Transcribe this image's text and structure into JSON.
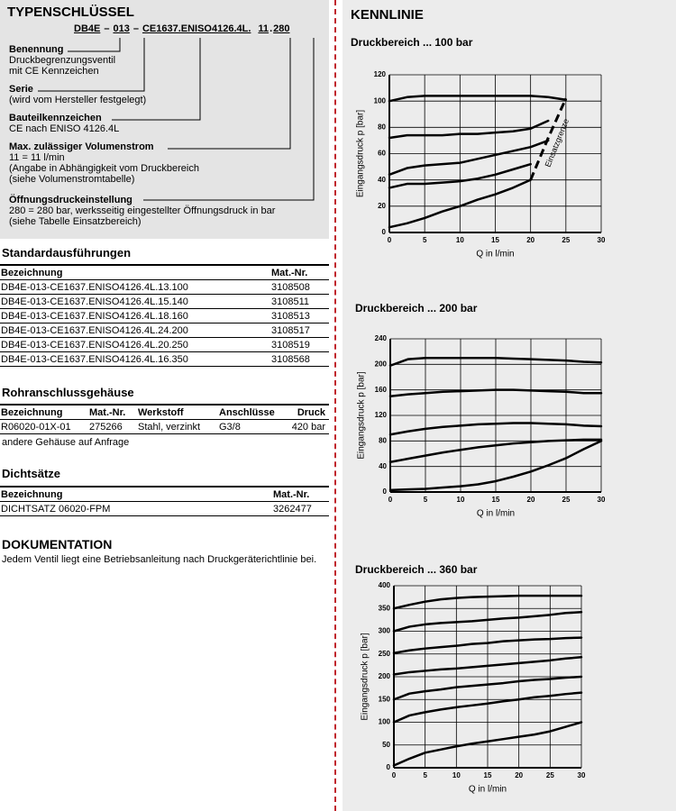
{
  "typenschluessel": {
    "title": "TYPENSCHLÜSSEL",
    "code": [
      "DB4E",
      "–",
      "013",
      "–",
      "CE1637.ENISO4126.4L.",
      "11",
      ".",
      "280"
    ],
    "items": [
      {
        "label": "Benennung",
        "lines": [
          "Druckbegrenzungsventil",
          "mit CE Kennzeichen"
        ]
      },
      {
        "label": "Serie",
        "lines": [
          "(wird vom Hersteller festgelegt)"
        ]
      },
      {
        "label": "Bauteilkennzeichen",
        "lines": [
          "CE nach ENISO 4126.4L"
        ]
      },
      {
        "label": "Max. zulässiger Volumenstrom",
        "lines": [
          "11 = 11 l/min",
          "(Angabe in Abhängigkeit vom Druckbereich",
          "(siehe Volumenstromtabelle)"
        ]
      },
      {
        "label": "Öffnungsdruckeinstellung",
        "lines": [
          "280 = 280 bar, werksseitig eingestellter Öffnungsdruck in bar",
          "(siehe Tabelle Einsatzbereich)"
        ]
      }
    ]
  },
  "standard": {
    "title": "Standardausführungen",
    "columns": [
      "Bezeichnung",
      "Mat.-Nr."
    ],
    "rows": [
      [
        "DB4E-013-CE1637.ENISO4126.4L.13.100",
        "3108508"
      ],
      [
        "DB4E-013-CE1637.ENISO4126.4L.15.140",
        "3108511"
      ],
      [
        "DB4E-013-CE1637.ENISO4126.4L.18.160",
        "3108513"
      ],
      [
        "DB4E-013-CE1637.ENISO4126.4L.24.200",
        "3108517"
      ],
      [
        "DB4E-013-CE1637.ENISO4126.4L.20.250",
        "3108519"
      ],
      [
        "DB4E-013-CE1637.ENISO4126.4L.16.350",
        "3108568"
      ]
    ]
  },
  "gehaeuse": {
    "title": "Rohranschlussgehäuse",
    "columns": [
      "Bezeichnung",
      "Mat.-Nr.",
      "Werkstoff",
      "Anschlüsse",
      "Druck"
    ],
    "rows": [
      [
        "R06020-01X-01",
        "275266",
        "Stahl, verzinkt",
        "G3/8",
        "420 bar"
      ]
    ],
    "note": "andere Gehäuse auf Anfrage"
  },
  "dichtsaetze": {
    "title": "Dichtsätze",
    "columns": [
      "Bezeichnung",
      "Mat.-Nr."
    ],
    "rows": [
      [
        "DICHTSATZ 06020-FPM",
        "3262477"
      ]
    ]
  },
  "dokumentation": {
    "title": "DOKUMENTATION",
    "text": "Jedem Ventil liegt eine Betriebsanleitung nach Druckgeräterichtlinie bei."
  },
  "kennlinie": {
    "title": "KENNLINIE"
  },
  "chart_data": [
    {
      "type": "line",
      "title": "Druckbereich ... 100 bar",
      "x_label": "Q in l/min",
      "y_label": "Eingangsdruck p [bar]",
      "annotation": "Einsatzgrenze",
      "color": "#000000",
      "grid": true,
      "xlim": [
        0,
        30
      ],
      "ylim": [
        0,
        120
      ],
      "xticks": [
        0,
        5,
        10,
        15,
        20,
        25,
        30
      ],
      "yticks": [
        0,
        20,
        40,
        60,
        80,
        100,
        120
      ],
      "x": [
        0,
        2.5,
        5,
        7.5,
        10,
        12.5,
        15,
        17.5,
        20,
        22.5,
        25,
        27.5,
        30
      ],
      "series": [
        {
          "values": [
            100,
            103,
            104,
            104,
            104,
            104,
            104,
            104,
            104,
            103,
            101,
            null,
            null
          ]
        },
        {
          "values": [
            72,
            74,
            74,
            74,
            75,
            75,
            76,
            77,
            79,
            85,
            null,
            null,
            null
          ]
        },
        {
          "values": [
            44,
            49,
            51,
            52,
            53,
            56,
            59,
            62,
            65,
            70,
            null,
            null,
            null
          ]
        },
        {
          "values": [
            34,
            37,
            37,
            38,
            39,
            41,
            44,
            48,
            52,
            null,
            null,
            null,
            null
          ]
        },
        {
          "values": [
            4,
            7,
            11,
            16,
            20,
            25,
            29,
            34,
            40,
            null,
            null,
            null,
            null
          ]
        },
        {
          "values": [
            null,
            null,
            null,
            null,
            null,
            null,
            null,
            null,
            40,
            72,
            102,
            null,
            null
          ],
          "dash": true
        }
      ]
    },
    {
      "type": "line",
      "title": "Druckbereich ... 200 bar",
      "x_label": "Q in l/min",
      "y_label": "Eingangsdruck p [bar]",
      "color": "#000000",
      "grid": true,
      "xlim": [
        0,
        30
      ],
      "ylim": [
        0,
        240
      ],
      "xticks": [
        0,
        5,
        10,
        15,
        20,
        25,
        30
      ],
      "yticks": [
        0,
        40,
        80,
        120,
        160,
        200,
        240
      ],
      "x": [
        0,
        2.5,
        5,
        7.5,
        10,
        12.5,
        15,
        17.5,
        20,
        22.5,
        25,
        27.5,
        30
      ],
      "series": [
        {
          "values": [
            198,
            208,
            210,
            210,
            210,
            210,
            210,
            209,
            208,
            207,
            206,
            204,
            203
          ]
        },
        {
          "values": [
            150,
            153,
            155,
            157,
            158,
            159,
            160,
            160,
            159,
            158,
            157,
            155,
            155
          ]
        },
        {
          "values": [
            90,
            95,
            99,
            102,
            104,
            106,
            107,
            108,
            108,
            107,
            106,
            104,
            103
          ]
        },
        {
          "values": [
            47,
            52,
            57,
            62,
            66,
            70,
            73,
            76,
            78,
            80,
            81,
            82,
            82
          ]
        },
        {
          "values": [
            3,
            4,
            5,
            7,
            9,
            12,
            17,
            24,
            32,
            42,
            53,
            67,
            80
          ]
        }
      ]
    },
    {
      "type": "line",
      "title": "Druckbereich ... 360 bar",
      "x_label": "Q in l/min",
      "y_label": "Eingangsdruck p [bar]",
      "color": "#000000",
      "grid": true,
      "xlim": [
        0,
        30
      ],
      "ylim": [
        0,
        400
      ],
      "xticks": [
        0,
        5,
        10,
        15,
        20,
        25,
        30
      ],
      "yticks": [
        0,
        50,
        100,
        150,
        200,
        250,
        300,
        350,
        400
      ],
      "x": [
        0,
        2.5,
        5,
        7.5,
        10,
        12.5,
        15,
        17.5,
        20,
        22.5,
        25,
        27.5,
        30
      ],
      "series": [
        {
          "values": [
            350,
            358,
            365,
            370,
            373,
            375,
            376,
            377,
            378,
            378,
            378,
            378,
            378
          ]
        },
        {
          "values": [
            300,
            310,
            315,
            318,
            320,
            322,
            325,
            328,
            330,
            333,
            336,
            340,
            342
          ]
        },
        {
          "values": [
            252,
            258,
            262,
            265,
            268,
            272,
            274,
            278,
            280,
            282,
            283,
            285,
            286
          ]
        },
        {
          "values": [
            205,
            210,
            213,
            216,
            218,
            221,
            224,
            227,
            230,
            233,
            236,
            240,
            243
          ]
        },
        {
          "values": [
            150,
            163,
            168,
            172,
            177,
            180,
            183,
            186,
            190,
            193,
            195,
            198,
            200
          ]
        },
        {
          "values": [
            100,
            115,
            122,
            128,
            133,
            137,
            141,
            146,
            150,
            155,
            158,
            162,
            165
          ]
        },
        {
          "values": [
            5,
            20,
            33,
            40,
            47,
            53,
            58,
            63,
            68,
            73,
            80,
            90,
            100
          ]
        }
      ]
    }
  ]
}
